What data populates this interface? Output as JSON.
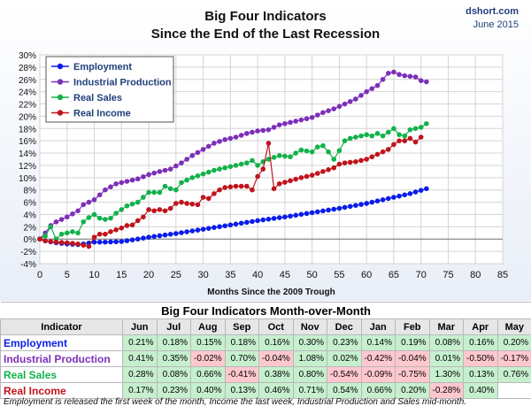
{
  "header": {
    "title_line1": "Big Four Indicators",
    "title_line2": "Since the End of the Last Recession",
    "source_site": "dshort.com",
    "source_date": "June 2015"
  },
  "chart_data": {
    "type": "line",
    "xlabel": "Months Since the 2009 Trough",
    "ylabel": "",
    "xlim": [
      0,
      85
    ],
    "ylim": [
      -4,
      30
    ],
    "x_ticks": [
      0,
      5,
      10,
      15,
      20,
      25,
      30,
      35,
      40,
      45,
      50,
      55,
      60,
      65,
      70,
      75,
      80,
      85
    ],
    "y_ticks": [
      -4,
      -2,
      0,
      2,
      4,
      6,
      8,
      10,
      12,
      14,
      16,
      18,
      20,
      22,
      24,
      26,
      28,
      30
    ],
    "y_tick_suffix": "%",
    "grid": true,
    "legend_position": "top-left",
    "series": [
      {
        "name": "Employment",
        "color": "#0b1de8",
        "anchors": [
          [
            0,
            0
          ],
          [
            1,
            -0.3
          ],
          [
            3,
            -0.6
          ],
          [
            5,
            -0.8
          ],
          [
            7,
            -0.9
          ],
          [
            8,
            -0.8
          ],
          [
            10,
            -0.5
          ],
          [
            12,
            -0.5
          ],
          [
            15,
            -0.4
          ],
          [
            18,
            0
          ],
          [
            20,
            0.3
          ],
          [
            25,
            0.9
          ],
          [
            30,
            1.6
          ],
          [
            35,
            2.3
          ],
          [
            40,
            3.0
          ],
          [
            45,
            3.6
          ],
          [
            50,
            4.3
          ],
          [
            55,
            5.0
          ],
          [
            60,
            5.8
          ],
          [
            65,
            6.8
          ],
          [
            68,
            7.4
          ],
          [
            71,
            8.2
          ]
        ]
      },
      {
        "name": "Industrial Production",
        "color": "#7c2fb8",
        "anchors": [
          [
            0,
            0
          ],
          [
            1,
            1.0
          ],
          [
            2,
            2.2
          ],
          [
            3,
            2.8
          ],
          [
            5,
            3.6
          ],
          [
            7,
            4.6
          ],
          [
            8,
            5.6
          ],
          [
            10,
            6.4
          ],
          [
            12,
            8.0
          ],
          [
            14,
            9.0
          ],
          [
            16,
            9.4
          ],
          [
            18,
            9.8
          ],
          [
            20,
            10.5
          ],
          [
            22,
            11.0
          ],
          [
            24,
            11.4
          ],
          [
            26,
            12.4
          ],
          [
            28,
            13.6
          ],
          [
            30,
            14.6
          ],
          [
            32,
            15.6
          ],
          [
            34,
            16.2
          ],
          [
            36,
            16.6
          ],
          [
            38,
            17.2
          ],
          [
            40,
            17.6
          ],
          [
            42,
            17.8
          ],
          [
            44,
            18.6
          ],
          [
            46,
            19.0
          ],
          [
            48,
            19.4
          ],
          [
            50,
            19.8
          ],
          [
            52,
            20.6
          ],
          [
            54,
            21.2
          ],
          [
            56,
            22.0
          ],
          [
            58,
            22.8
          ],
          [
            60,
            24.0
          ],
          [
            62,
            25.0
          ],
          [
            63,
            26.0
          ],
          [
            64,
            27.0
          ],
          [
            65,
            27.2
          ],
          [
            66,
            26.8
          ],
          [
            67,
            26.6
          ],
          [
            69,
            26.4
          ],
          [
            70,
            25.8
          ],
          [
            71,
            25.6
          ]
        ]
      },
      {
        "name": "Real Sales",
        "color": "#11b24a",
        "anchors": [
          [
            0,
            0
          ],
          [
            1,
            0.5
          ],
          [
            2,
            2.0
          ],
          [
            3,
            0
          ],
          [
            4,
            0.8
          ],
          [
            6,
            1.2
          ],
          [
            7,
            1.0
          ],
          [
            8,
            2.8
          ],
          [
            9,
            3.5
          ],
          [
            10,
            4.0
          ],
          [
            11,
            3.4
          ],
          [
            12,
            3.2
          ],
          [
            13,
            3.4
          ],
          [
            14,
            4.2
          ],
          [
            15,
            4.8
          ],
          [
            16,
            5.4
          ],
          [
            18,
            6.0
          ],
          [
            19,
            6.8
          ],
          [
            20,
            7.6
          ],
          [
            22,
            7.6
          ],
          [
            23,
            8.6
          ],
          [
            24,
            8.2
          ],
          [
            25,
            8.0
          ],
          [
            26,
            9.2
          ],
          [
            28,
            10.0
          ],
          [
            30,
            10.6
          ],
          [
            32,
            11.2
          ],
          [
            34,
            11.6
          ],
          [
            36,
            12.0
          ],
          [
            38,
            12.4
          ],
          [
            39,
            12.8
          ],
          [
            40,
            12.0
          ],
          [
            41,
            12.6
          ],
          [
            42,
            13.0
          ],
          [
            44,
            13.6
          ],
          [
            46,
            13.4
          ],
          [
            47,
            14.0
          ],
          [
            48,
            14.5
          ],
          [
            50,
            14.2
          ],
          [
            51,
            15.0
          ],
          [
            52,
            15.2
          ],
          [
            53,
            14.2
          ],
          [
            54,
            13.0
          ],
          [
            55,
            14.4
          ],
          [
            56,
            16.0
          ],
          [
            57,
            16.4
          ],
          [
            58,
            16.6
          ],
          [
            60,
            17.0
          ],
          [
            61,
            16.8
          ],
          [
            62,
            17.2
          ],
          [
            63,
            16.8
          ],
          [
            64,
            17.4
          ],
          [
            65,
            18.0
          ],
          [
            66,
            17.0
          ],
          [
            67,
            16.8
          ],
          [
            68,
            17.8
          ],
          [
            70,
            18.2
          ],
          [
            71,
            18.8
          ]
        ]
      },
      {
        "name": "Real Income",
        "color": "#c0141d",
        "anchors": [
          [
            0,
            0
          ],
          [
            1,
            -0.3
          ],
          [
            3,
            -0.5
          ],
          [
            5,
            -0.6
          ],
          [
            7,
            -0.8
          ],
          [
            9,
            -1.2
          ],
          [
            10,
            0.3
          ],
          [
            11,
            0.8
          ],
          [
            12,
            0.8
          ],
          [
            13,
            1.2
          ],
          [
            14,
            1.5
          ],
          [
            15,
            1.8
          ],
          [
            16,
            2.2
          ],
          [
            17,
            2.3
          ],
          [
            18,
            3.0
          ],
          [
            19,
            3.6
          ],
          [
            20,
            4.8
          ],
          [
            21,
            4.6
          ],
          [
            22,
            4.8
          ],
          [
            23,
            4.6
          ],
          [
            24,
            5.0
          ],
          [
            25,
            5.8
          ],
          [
            26,
            6.0
          ],
          [
            27,
            5.8
          ],
          [
            28,
            5.7
          ],
          [
            29,
            5.6
          ],
          [
            30,
            6.8
          ],
          [
            31,
            6.6
          ],
          [
            32,
            7.4
          ],
          [
            33,
            8.0
          ],
          [
            34,
            8.4
          ],
          [
            36,
            8.6
          ],
          [
            38,
            8.6
          ],
          [
            39,
            8.0
          ],
          [
            40,
            10.2
          ],
          [
            41,
            11.4
          ],
          [
            42,
            15.6
          ],
          [
            43,
            8.2
          ],
          [
            44,
            9.0
          ],
          [
            46,
            9.5
          ],
          [
            48,
            10.0
          ],
          [
            50,
            10.4
          ],
          [
            52,
            11.0
          ],
          [
            54,
            11.6
          ],
          [
            55,
            12.2
          ],
          [
            56,
            12.4
          ],
          [
            58,
            12.6
          ],
          [
            60,
            13.0
          ],
          [
            62,
            13.8
          ],
          [
            64,
            14.6
          ],
          [
            65,
            15.4
          ],
          [
            66,
            16.0
          ],
          [
            67,
            16.0
          ],
          [
            68,
            16.4
          ],
          [
            69,
            15.8
          ],
          [
            70,
            16.6
          ]
        ]
      }
    ]
  },
  "table": {
    "title": "Big Four Indicators Month-over-Month",
    "header_label": "Indicator",
    "months": [
      "Jun",
      "Jul",
      "Aug",
      "Sep",
      "Oct",
      "Nov",
      "Dec",
      "Jan",
      "Feb",
      "Mar",
      "Apr",
      "May"
    ],
    "rows": [
      {
        "name": "Employment",
        "color": "#0b1de8",
        "values": [
          "0.21%",
          "0.18%",
          "0.15%",
          "0.18%",
          "0.16%",
          "0.30%",
          "0.23%",
          "0.14%",
          "0.19%",
          "0.08%",
          "0.16%",
          "0.20%"
        ],
        "signs": [
          "p",
          "p",
          "p",
          "p",
          "p",
          "p",
          "p",
          "p",
          "p",
          "p",
          "p",
          "p"
        ]
      },
      {
        "name": "Industrial Production",
        "color": "#7c2fb8",
        "values": [
          "0.41%",
          "0.35%",
          "-0.02%",
          "0.70%",
          "-0.04%",
          "1.08%",
          "0.02%",
          "-0.42%",
          "-0.04%",
          "0.01%",
          "-0.50%",
          "-0.17%"
        ],
        "signs": [
          "p",
          "p",
          "n",
          "p",
          "n",
          "p",
          "p",
          "n",
          "n",
          "p",
          "n",
          "n"
        ]
      },
      {
        "name": "Real Sales",
        "color": "#11b24a",
        "values": [
          "0.28%",
          "0.08%",
          "0.66%",
          "-0.41%",
          "0.38%",
          "0.80%",
          "-0.54%",
          "-0.09%",
          "-0.75%",
          "1.30%",
          "0.13%",
          "0.76%"
        ],
        "signs": [
          "p",
          "p",
          "p",
          "n",
          "p",
          "p",
          "n",
          "n",
          "n",
          "p",
          "p",
          "p"
        ]
      },
      {
        "name": "Real Income",
        "color": "#c0141d",
        "values": [
          "0.17%",
          "0.23%",
          "0.40%",
          "0.13%",
          "0.46%",
          "0.71%",
          "0.54%",
          "0.66%",
          "0.20%",
          "-0.28%",
          "0.40%",
          ""
        ],
        "signs": [
          "p",
          "p",
          "p",
          "p",
          "p",
          "p",
          "p",
          "p",
          "p",
          "n",
          "p",
          "e"
        ]
      }
    ]
  },
  "footnote": "Employment is released the first week of the month, Income the last week, Industrial Production and Sales mid-month."
}
